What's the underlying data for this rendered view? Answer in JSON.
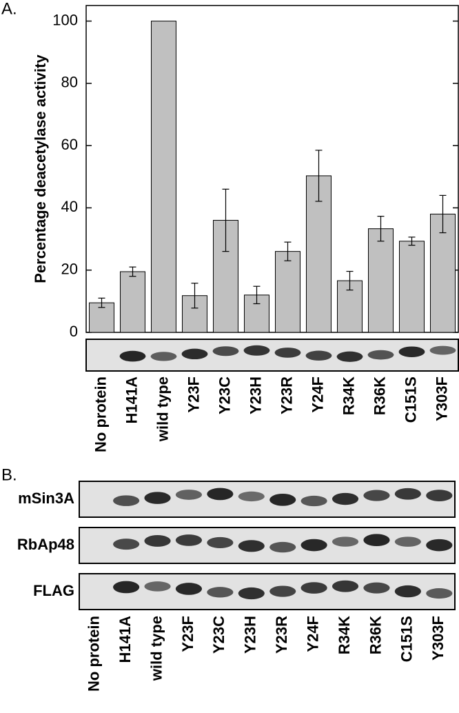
{
  "chart_data": {
    "type": "bar",
    "panel_label": "A.",
    "ylabel": "Percentage deacetylase activity",
    "categories": [
      "No protein",
      "H141A",
      "wild type",
      "Y23F",
      "Y23C",
      "Y23H",
      "Y23R",
      "Y24F",
      "R34K",
      "R36K",
      "C151S",
      "Y303F"
    ],
    "values": [
      9.5,
      19.5,
      100,
      11.8,
      36,
      12,
      26,
      50.3,
      16.6,
      33.3,
      29.3,
      38
    ],
    "errors": [
      1.5,
      1.5,
      null,
      4,
      10,
      2.8,
      3,
      8.2,
      3,
      4,
      1.3,
      6
    ],
    "color": "#c0c0c0",
    "ylim": [
      0,
      105
    ],
    "yticks": [
      0,
      20,
      40,
      60,
      80,
      100
    ]
  },
  "blots": {
    "panel_label": "B.",
    "rows": [
      "mSin3A",
      "RbAp48",
      "FLAG"
    ]
  }
}
